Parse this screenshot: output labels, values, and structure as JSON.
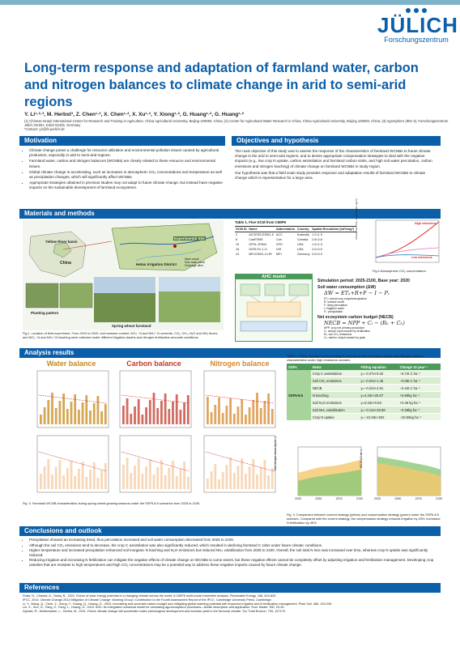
{
  "header": {
    "logo_name": "JÜLICH",
    "logo_sub": "Forschungszentrum",
    "title": "Long-term response and adaptation of farmland water, carbon and nitrogen balances to climate change in arid to semi-arid regions",
    "authors": "Y. Li¹·²·³, M. Herbst³, Z. Chen¹·², X. Chen¹·², X. Xu¹·², Y. Xiong¹·², G. Huang¹·², G. Huang¹·²",
    "affiliations": "(1) Chinese-Israeli International Center for Research and Training in Agriculture, China Agricultural University, Beijing 100083, China; (2) Center for Agricultural Water Research in China, China Agricultural University, Beijing 100083, China; (3) Agrosphere (IBG-3), Forschungszentrum Jülich GmbH, Jülich 52425, Germany",
    "contact": "*Contact: y.li@fz-juelich.de"
  },
  "motivation": {
    "heading": "Motivation",
    "bullets": [
      "Climate change poses a challenge for resource utilization and environmental pollution issues caused by agricultural production, especially in arid to semi-arid regions.",
      "Farmland water, carbon and nitrogen balances (WCNBs) are closely related to these resource and environmental issues.",
      "Global climate change is accelerating, such as increases in atmospheric CO₂ concentrations and temperature as well as precipitation changes, which will significantly affect WCNBs.",
      "Appropriate strategies obtained in previous studies may not adapt to future climate change, but instead have negative impacts on the sustainable development of farmland ecosystems."
    ]
  },
  "objectives": {
    "heading": "Objectives and hypothesis",
    "paragraph1": "The main objective of this study was to assess the response of the characteristics of farmland WCNBs to future climate change in the arid to semi-arid regions; and to devise appropriate compensation strategies to deal with the negative impacts (e.g., low crop N uptake, carbon assimilation and farmland carbon sinks, and high soil water percolation, carbon emissions and nitrogen leaching) of climate change on farmland WCNBs in study region.",
    "paragraph2": "Our hypothesis was that a field scale study provides response and adaptation results of farmland WCNBs to climate change which is representative for a large area."
  },
  "materials": {
    "heading": "Materials and methods",
    "map_labels": {
      "yellow_river": "Yellow River basin",
      "china": "China",
      "experimental_site": "Experimental Site",
      "hetao": "Hetao Irrigation District",
      "legend_canal": "Main canal",
      "legend_sub": "Sub-main canal",
      "legend_drain": "Drainage ditch",
      "planting": "Planting pattern",
      "spring_wheat": "Spring wheat farmland"
    },
    "fig1_caption": "Fig.1. Location of field experiment. From 2019 to 2020, soil moisture content, NO₃⁻-N and NH₄⁺-N contents, CO₂, CH₄, N₂O and NH₃ fluxes, and NO₃⁻-N and NH₄⁺-N leaching were collected under different irrigation depths and nitrogen fertilization amounts conditions",
    "table1": {
      "caption": "Table 1. Five GCM from CMIP6",
      "headers": [
        "GCM ID",
        "Name",
        "Abbreviation",
        "Country",
        "Spatial Resolution (lat*long*)"
      ],
      "rows": [
        [
          "2",
          "ACCESS-ESM1-5",
          "ACC",
          "Australia",
          "1.2×1.9"
        ],
        [
          "6",
          "CanESM5",
          "Can",
          "Canada",
          "2.8×2.8"
        ],
        [
          "15",
          "GFDL-ESM4",
          "GFD",
          "USA",
          "1.0×1.3"
        ],
        [
          "16",
          "GISS-E2-1-G",
          "GIS",
          "USA",
          "2.0×2.5"
        ],
        [
          "23",
          "MPI-ESM1-2-HR",
          "MPI",
          "Germany",
          "0.9×0.9"
        ]
      ]
    },
    "fig2": {
      "caption": "Fig.2 Atmospheric CO₂ concentration",
      "ylabel": "Atmospheric CO₂ concentration (ppm)",
      "high_label": "High emissions",
      "low_label": "Low emissions"
    },
    "ahc_title": "AHC model",
    "sim_period": "Simulation period: 2025-2100, Base year: 2020",
    "soil_water_label": "Soil water consumption (ΔW)",
    "soil_water_eq": "ΔW = ETₐ+R+F − I − Pᵣ",
    "soil_water_defs": [
      "ETₐ: actual crop evapotranspiration",
      "R: surface runoff",
      "F: deep percolation",
      "I: irrigation water",
      "Pᵣ: precipitation"
    ],
    "necb_label": "Net ecosystem carbon budget (NECB)",
    "necb_eq": "NECB = NPP + Cᵢ − (Rₕ + Cₕ)",
    "necb_defs": [
      "NPP: crop net primary production",
      "Cᵢ: carbon input caused by fertilization",
      "Rₕ: soil CO₂ emissions",
      "Cₕ: carbon output caused by grain"
    ]
  },
  "analysis": {
    "heading": "Analysis results",
    "panels": {
      "water": "Water balance",
      "carbon": "Carbon balance",
      "nitrogen": "Nitrogen balance"
    },
    "fig3_caption": "Fig. 3. Farmland WCNB characteristics during spring wheat growing seasons under the SSP5-8.5 scenarios from 2025 to 2100.",
    "table5": {
      "caption": "Table 5. Fitting equation corresponding to each trend line of farmland carbon and nitrogen balance characteristics under high emissions scenario",
      "headers": [
        "SSPs",
        "Items",
        "Fitting equation",
        "Change 10 year⁻¹"
      ],
      "scenario": "SSP5-8.5",
      "rows": [
        [
          "Crop C assimilation",
          "y=−0.37x+9.42",
          "−0.74t C ha⁻¹"
        ],
        [
          "Soil CO₂ emissions",
          "y=−0.04x+1.45",
          "−0.08t C ha⁻¹"
        ],
        [
          "NECB",
          "y=−0.22x+4.51",
          "−0.44t C ha⁻¹"
        ],
        [
          "N leaching",
          "y=4.43x+25.57",
          "+8.86kg ha⁻¹"
        ],
        [
          "Soil N₂O emissions",
          "y=0.23x+0.53",
          "+0.46 kg ha⁻¹"
        ],
        [
          "Soil NH₃ volatilization",
          "y=−0.14x+25.69",
          "−0.28kg ha⁻¹"
        ],
        [
          "Crop N uptake",
          "y=−10.28x+262",
          "−20.56kg ha⁻¹"
        ]
      ]
    },
    "fig3b_caption": "Fig. 3. Comparison between current strategy (yellow) and compensation strategy (green) under the SSP5-8.5 scenario. Compared with the current strategy, the compensation strategy reduced irrigation by 45%, increased N fertilization by 45%.",
    "chart_left": {
      "ylabel": "Total nitrogen losses (kg ha⁻¹)",
      "x_ticks": [
        "2025",
        "2050",
        "2075",
        "2100"
      ]
    },
    "chart_right": {
      "ylabel": "NECB (t C ha⁻¹)",
      "x_ticks": [
        "2025",
        "2050",
        "2075",
        "2100"
      ]
    }
  },
  "conclusions": {
    "heading": "Conclusions and outlook",
    "bullets": [
      "Precipitation showed an increasing trend, thus percolation increased and soil water consumption decreased from 2025 to 2100.",
      "Although the soil CO₂ emissions tend to decrease, the crop C assimilation was also significantly reduced, which resulted in declining farmland C sinks under future climatic conditions.",
      "Higher temperature and increased precipitation enhanced soil inorganic N leaching and N₂O emissions but reduced NH₃ volatilization from 2025 to 2100. Overall, the soil total N loss was increased over time, whereas crop N uptake was significantly reduced.",
      "Reducing irrigation and increasing N fertilization can mitigate the negative effects of climate change on WCNBs to some extent, but these negative effects cannot be completely offset by adjusting irrigation and fertilization management. Developing crop varieties that are resistant to high temperatures and high CO₂ concentrations may be a potential way to address these negative impacts caused by future climate change."
    ]
  },
  "references": {
    "heading": "References",
    "items": [
      "Dutta, N., Chanda, A., Sadiq, B., 2022. Future of solar energy potential in a changing climate across the world: A CMIP6 multi-model ensemble analysis. Renewable Energy. 188, 819-829.",
      "IPCC, 2014. Climate Change 2014 Mitigation of Climate Change: Working Group I Contribution to the Fourth Assessment Report of the IPCC. Cambridge University Press, Cambridge.",
      "Li, Y., Wang, Q., Chen, Z., Xiong, Y., Huang, Q., Huang, G., 2023. Increasing and uncertain carbon budget and mitigating global warming potential with improved irrigation and N fertilization management. Plant Soil. 486, 193-209.",
      "Liu, X., Sun, G., Fang, Z., Fang, L., Huang, G., 2019. AHC: An integrated numerical model for simulating agroecosystem processes—Model description and application. Ecol. Model. 390, 23-39.",
      "Zyadah, R., Wollenweber, L., Herbst, M., 2021. Future climate change will accelerate maize phenological development and increase yield in the Nemoral climate. Sci. Total Environ. 794, 147179."
    ]
  }
}
